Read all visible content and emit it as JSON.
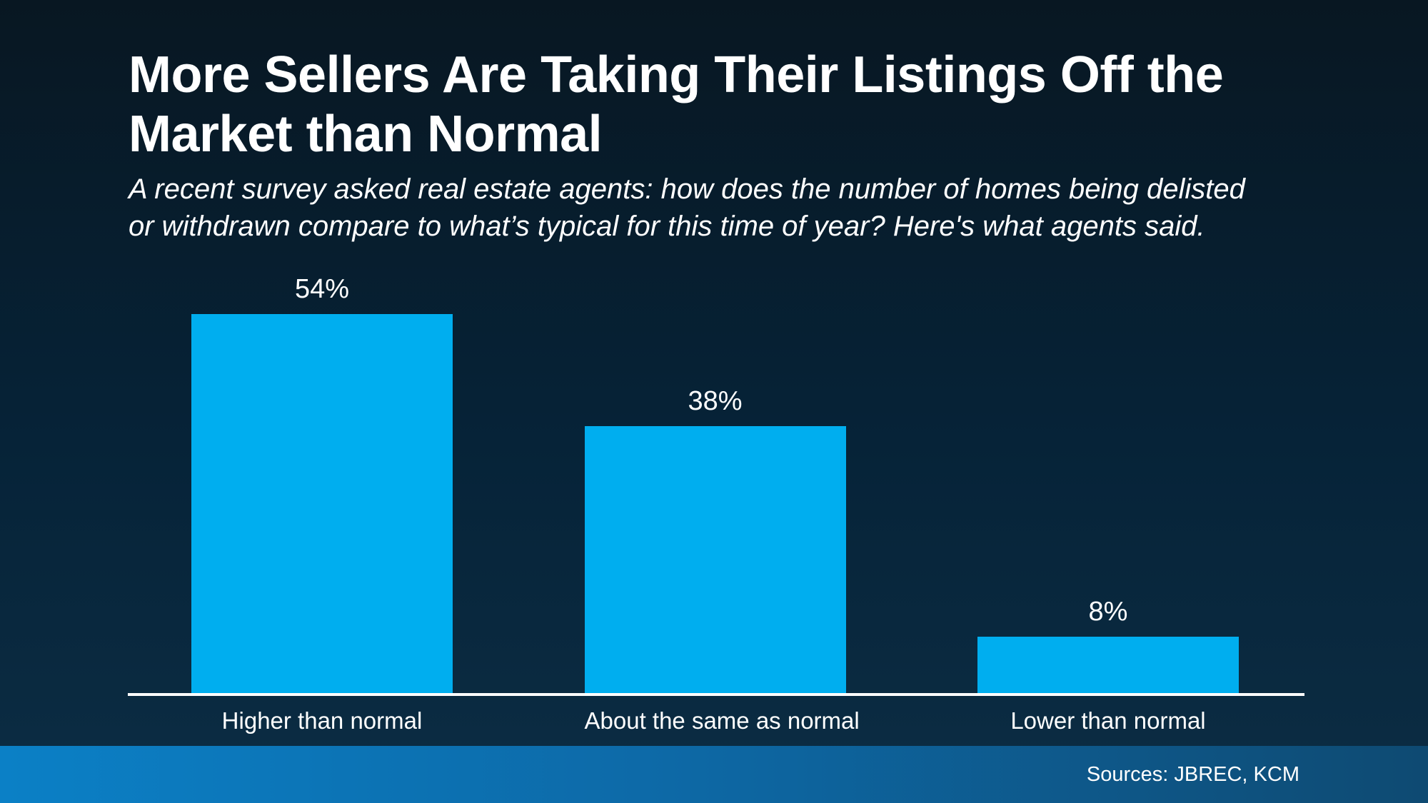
{
  "header": {
    "title": "More Sellers Are Taking Their Listings Off the Market than Normal",
    "title_lines": [
      "More Sellers Are Taking Their Listings Off the",
      "Market than Normal"
    ],
    "subtitle": "A recent survey asked real estate agents: how does the number of homes being delisted or withdrawn compare to what’s typical for this time of year? Here's what agents said.",
    "subtitle_lines": [
      "A recent survey asked real estate agents: how does the number of homes being delisted",
      "or withdrawn compare to what’s typical for this time of year? Here's what agents said."
    ]
  },
  "chart_data": {
    "type": "bar",
    "title": "More Sellers Are Taking Their Listings Off the Market than Normal",
    "categories": [
      "Higher than normal",
      "About the same as normal",
      "Lower than normal"
    ],
    "values": [
      54,
      38,
      8
    ],
    "data_labels": [
      "54%",
      "38%",
      "8%"
    ],
    "unit": "%",
    "xlabel": "",
    "ylabel": "",
    "ylim": [
      0,
      59
    ],
    "grid": false,
    "legend": false,
    "bar_color": "#00AEEF",
    "axis_color": "#FFFFFF",
    "label_color": "#FFFFFF"
  },
  "footer": {
    "sources": "Sources: JBREC, KCM"
  },
  "colors": {
    "background_top": "#081722",
    "background_bottom": "#0C2D44",
    "bar": "#00AEEF",
    "axis": "#FFFFFF",
    "text": "#FFFFFF",
    "footer_gradient_left": "#0B80C6",
    "footer_gradient_right": "#0E4A72"
  }
}
